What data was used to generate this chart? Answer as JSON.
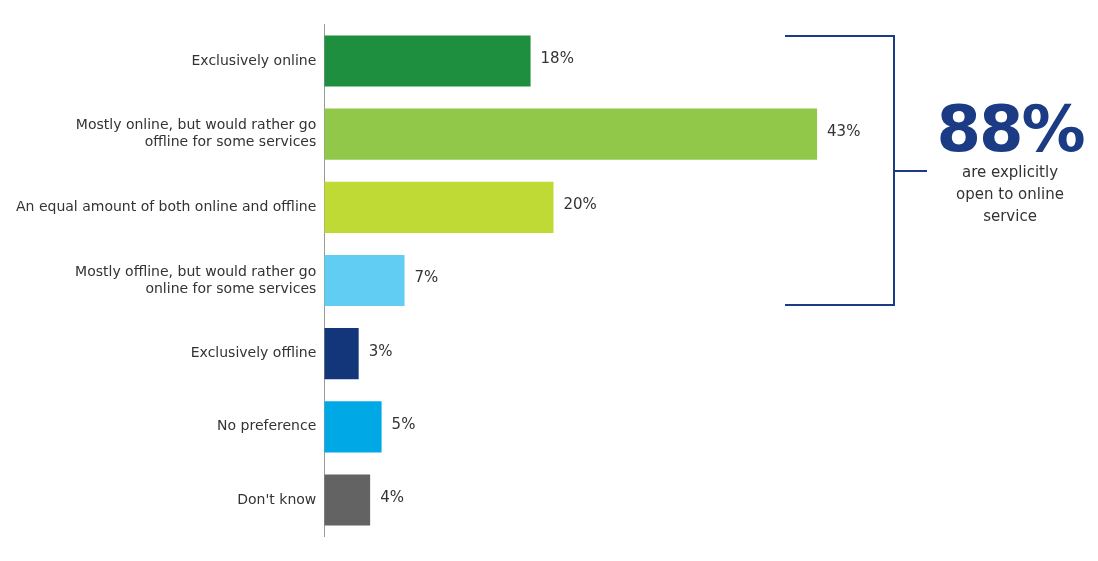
{
  "chart_data": {
    "type": "bar",
    "orientation": "horizontal",
    "categories": [
      "Exclusively online",
      "Mostly online, but would rather go offline for some services",
      "An equal amount of both online and offline",
      "Mostly offline, but would rather go online for some services",
      "Exclusively offline",
      "No preference",
      "Don't know"
    ],
    "values": [
      18,
      43,
      20,
      7,
      3,
      5,
      4
    ],
    "colors": [
      "#1e8f3e",
      "#92c84a",
      "#bfd935",
      "#62cdf3",
      "#13357a",
      "#00a9e6",
      "#636363"
    ],
    "value_labels": [
      "18%",
      "43%",
      "20%",
      "7%",
      "3%",
      "5%",
      "4%"
    ],
    "tick_labels": "y",
    "grid": false,
    "legend": false,
    "annotations": [
      "88%",
      "are explicitly open to online service"
    ]
  }
}
